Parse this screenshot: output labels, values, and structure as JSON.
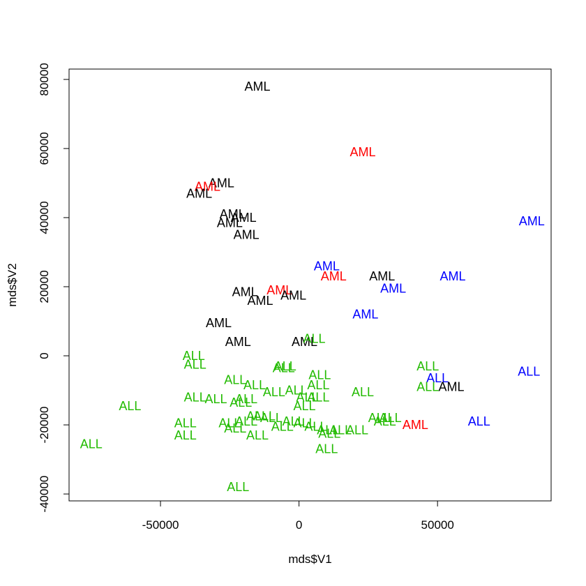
{
  "chart_data": {
    "type": "scatter",
    "title": "",
    "xlabel": "mds$V1",
    "ylabel": "mds$V2",
    "xlim": [
      -83000,
      91000
    ],
    "ylim": [
      -42000,
      83000
    ],
    "x_ticks": [
      -50000,
      0,
      50000
    ],
    "x_tick_labels": [
      "-50000",
      "0",
      "50000"
    ],
    "y_ticks": [
      -40000,
      -20000,
      0,
      20000,
      40000,
      60000,
      80000
    ],
    "y_tick_labels": [
      "-40000",
      "-20000",
      "0",
      "20000",
      "40000",
      "60000",
      "80000"
    ],
    "grid": false,
    "colors": {
      "black": "#000000",
      "red": "#ff0000",
      "green": "#22bb00",
      "blue": "#0000ff"
    },
    "points": [
      {
        "label": "AML",
        "x": -15000,
        "y": 78000,
        "color": "black"
      },
      {
        "label": "AML",
        "x": 23000,
        "y": 59000,
        "color": "red"
      },
      {
        "label": "AML",
        "x": -28000,
        "y": 50000,
        "color": "black"
      },
      {
        "label": "AML",
        "x": -33000,
        "y": 49000,
        "color": "red"
      },
      {
        "label": "AML",
        "x": -36000,
        "y": 47000,
        "color": "black"
      },
      {
        "label": "AML",
        "x": -24000,
        "y": 41000,
        "color": "black"
      },
      {
        "label": "AML",
        "x": -20000,
        "y": 40000,
        "color": "black"
      },
      {
        "label": "AML",
        "x": -25000,
        "y": 38500,
        "color": "black"
      },
      {
        "label": "AML",
        "x": -19000,
        "y": 35000,
        "color": "black"
      },
      {
        "label": "AML",
        "x": 84000,
        "y": 39000,
        "color": "blue"
      },
      {
        "label": "AML",
        "x": 10000,
        "y": 26000,
        "color": "blue"
      },
      {
        "label": "AML",
        "x": 12500,
        "y": 23000,
        "color": "red"
      },
      {
        "label": "AML",
        "x": 30000,
        "y": 23000,
        "color": "black"
      },
      {
        "label": "AML",
        "x": 55500,
        "y": 23000,
        "color": "blue"
      },
      {
        "label": "AML",
        "x": 34000,
        "y": 19500,
        "color": "blue"
      },
      {
        "label": "AML",
        "x": -7000,
        "y": 19000,
        "color": "red"
      },
      {
        "label": "AML",
        "x": -19500,
        "y": 18500,
        "color": "black"
      },
      {
        "label": "AML",
        "x": -2000,
        "y": 17500,
        "color": "black"
      },
      {
        "label": "AML",
        "x": -14000,
        "y": 16000,
        "color": "black"
      },
      {
        "label": "AML",
        "x": 24000,
        "y": 12000,
        "color": "blue"
      },
      {
        "label": "AML",
        "x": -29000,
        "y": 9500,
        "color": "black"
      },
      {
        "label": "AML",
        "x": -22000,
        "y": 4000,
        "color": "black"
      },
      {
        "label": "AML",
        "x": 2000,
        "y": 4000,
        "color": "black"
      },
      {
        "label": "ALL",
        "x": 5500,
        "y": 5000,
        "color": "green"
      },
      {
        "label": "ALL",
        "x": -38000,
        "y": 0,
        "color": "green"
      },
      {
        "label": "ALL",
        "x": -37500,
        "y": -2500,
        "color": "green"
      },
      {
        "label": "ALL",
        "x": -5000,
        "y": -3000,
        "color": "green"
      },
      {
        "label": "ALL",
        "x": -5500,
        "y": -3500,
        "color": "green"
      },
      {
        "label": "ALL",
        "x": 46500,
        "y": -3000,
        "color": "green"
      },
      {
        "label": "ALL",
        "x": 83000,
        "y": -4500,
        "color": "blue"
      },
      {
        "label": "ALL",
        "x": 7500,
        "y": -5500,
        "color": "green"
      },
      {
        "label": "ALL",
        "x": -23000,
        "y": -7000,
        "color": "green"
      },
      {
        "label": "ALL",
        "x": 50000,
        "y": -6500,
        "color": "blue"
      },
      {
        "label": "ALL",
        "x": -16000,
        "y": -8500,
        "color": "green"
      },
      {
        "label": "ALL",
        "x": 7000,
        "y": -8500,
        "color": "green"
      },
      {
        "label": "ALL",
        "x": 46500,
        "y": -9000,
        "color": "green"
      },
      {
        "label": "AML",
        "x": 55000,
        "y": -9000,
        "color": "black"
      },
      {
        "label": "ALL",
        "x": -1000,
        "y": -10000,
        "color": "green"
      },
      {
        "label": "ALL",
        "x": -9000,
        "y": -10500,
        "color": "green"
      },
      {
        "label": "ALL",
        "x": 23000,
        "y": -10500,
        "color": "green"
      },
      {
        "label": "ALL",
        "x": -37500,
        "y": -12000,
        "color": "green"
      },
      {
        "label": "ALL",
        "x": -30000,
        "y": -12500,
        "color": "green"
      },
      {
        "label": "ALL",
        "x": -19000,
        "y": -12500,
        "color": "green"
      },
      {
        "label": "ALL",
        "x": 3000,
        "y": -12000,
        "color": "green"
      },
      {
        "label": "ALL",
        "x": 7000,
        "y": -12000,
        "color": "green"
      },
      {
        "label": "ALL",
        "x": -21000,
        "y": -13500,
        "color": "green"
      },
      {
        "label": "ALL",
        "x": -61000,
        "y": -14500,
        "color": "green"
      },
      {
        "label": "ALL",
        "x": 2000,
        "y": -14500,
        "color": "green"
      },
      {
        "label": "ALL",
        "x": -15000,
        "y": -17500,
        "color": "green"
      },
      {
        "label": "ALL",
        "x": -12500,
        "y": -17500,
        "color": "green"
      },
      {
        "label": "ALL",
        "x": -10000,
        "y": -18000,
        "color": "green"
      },
      {
        "label": "ALL",
        "x": 29000,
        "y": -18000,
        "color": "green"
      },
      {
        "label": "ALL",
        "x": 33000,
        "y": -18000,
        "color": "green"
      },
      {
        "label": "ALL",
        "x": -19000,
        "y": -19000,
        "color": "green"
      },
      {
        "label": "ALL",
        "x": -2000,
        "y": -19000,
        "color": "green"
      },
      {
        "label": "ALL",
        "x": 31000,
        "y": -19000,
        "color": "green"
      },
      {
        "label": "ALL",
        "x": -41000,
        "y": -19500,
        "color": "green"
      },
      {
        "label": "ALL",
        "x": -25000,
        "y": -19500,
        "color": "green"
      },
      {
        "label": "ALL",
        "x": 2000,
        "y": -19500,
        "color": "green"
      },
      {
        "label": "ALL",
        "x": 65000,
        "y": -19000,
        "color": "blue"
      },
      {
        "label": "AML",
        "x": 42000,
        "y": -20000,
        "color": "red"
      },
      {
        "label": "ALL",
        "x": 6000,
        "y": -20500,
        "color": "green"
      },
      {
        "label": "ALL",
        "x": -6000,
        "y": -20500,
        "color": "green"
      },
      {
        "label": "ALL",
        "x": -23000,
        "y": -21000,
        "color": "green"
      },
      {
        "label": "ALL",
        "x": 10500,
        "y": -21500,
        "color": "green"
      },
      {
        "label": "ALL",
        "x": 15000,
        "y": -21500,
        "color": "green"
      },
      {
        "label": "ALL",
        "x": 21000,
        "y": -21500,
        "color": "green"
      },
      {
        "label": "ALL",
        "x": 11000,
        "y": -22500,
        "color": "green"
      },
      {
        "label": "ALL",
        "x": -15000,
        "y": -23000,
        "color": "green"
      },
      {
        "label": "ALL",
        "x": -41000,
        "y": -23000,
        "color": "green"
      },
      {
        "label": "ALL",
        "x": -75000,
        "y": -25500,
        "color": "green"
      },
      {
        "label": "ALL",
        "x": 10000,
        "y": -27000,
        "color": "green"
      },
      {
        "label": "ALL",
        "x": -22000,
        "y": -38000,
        "color": "green"
      }
    ]
  }
}
